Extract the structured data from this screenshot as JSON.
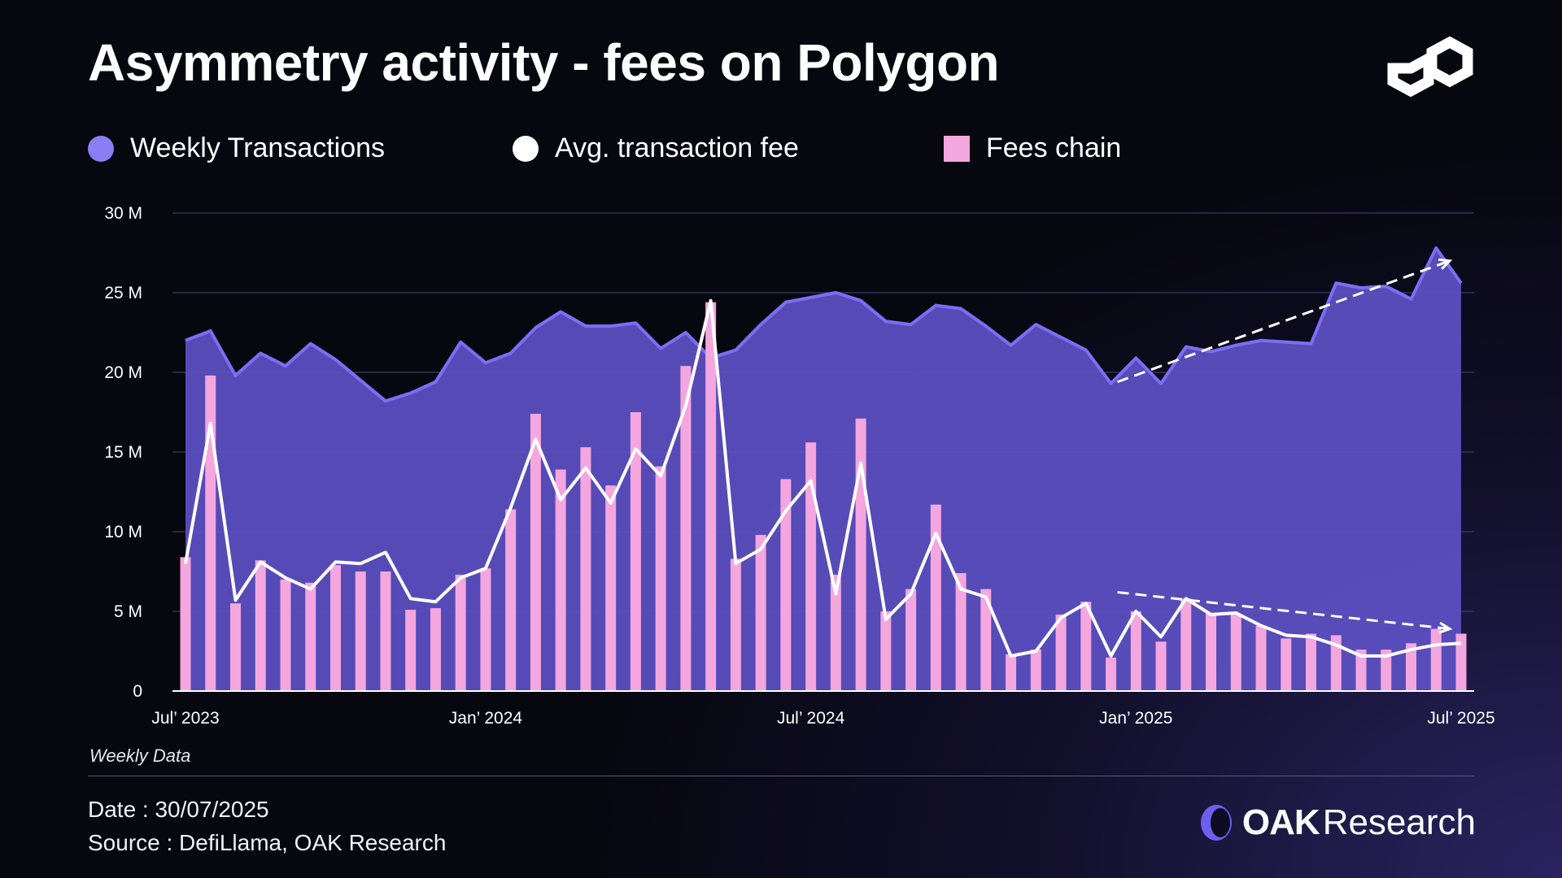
{
  "page": {
    "title": "Asymmetry activity - fees on Polygon",
    "note": "Weekly Data",
    "date": "Date : 30/07/2025",
    "source": "Source : DefiLlama, OAK Research",
    "brand_bold": "OAK",
    "brand_light": "Research"
  },
  "colors": {
    "area_fill": "#5b4fc0",
    "area_line": "#7b6ef5",
    "bar": "#f4a6de",
    "fee_line": "#ffffff",
    "grid": "#3b3960"
  },
  "chart_data": {
    "type": "bar+area+line",
    "legend": [
      {
        "label": "Weekly Transactions",
        "marker": "circle",
        "color": "#8a7ef5"
      },
      {
        "label": "Avg. transaction fee",
        "marker": "circle",
        "color": "#ffffff"
      },
      {
        "label": "Fees chain",
        "marker": "square",
        "color": "#f4a6de"
      }
    ],
    "y_axis": {
      "min": 0,
      "max": 30,
      "unit": "M",
      "ticks": [
        0,
        5,
        10,
        15,
        20,
        25,
        30
      ],
      "tick_labels": [
        "0",
        "5 M",
        "10 M",
        "15 M",
        "20 M",
        "25 M",
        "30 M"
      ]
    },
    "x_axis": {
      "labels": [
        "Jul’ 2023",
        "Jan’ 2024",
        "Jul’ 2024",
        "Jan’ 2025",
        "Jul’ 2025"
      ],
      "label_index": [
        0,
        12,
        25,
        38,
        51
      ]
    },
    "series": [
      {
        "name": "Weekly Transactions",
        "kind": "area",
        "values": [
          22.0,
          22.6,
          19.8,
          21.2,
          20.4,
          21.8,
          20.8,
          19.5,
          18.2,
          18.7,
          19.4,
          21.9,
          20.6,
          21.2,
          22.8,
          23.8,
          22.9,
          22.9,
          23.1,
          21.5,
          22.5,
          20.9,
          21.4,
          23.0,
          24.4,
          24.7,
          25.0,
          24.5,
          23.2,
          23.0,
          24.2,
          24.0,
          22.9,
          21.7,
          23.0,
          22.2,
          21.4,
          19.3,
          20.9,
          19.3,
          21.6,
          21.3,
          21.7,
          22.0,
          21.9,
          21.8,
          25.6,
          25.3,
          25.4,
          24.6,
          27.8,
          25.6
        ]
      },
      {
        "name": "Fees chain",
        "kind": "bar",
        "values": [
          8.4,
          19.8,
          5.5,
          8.2,
          7.0,
          6.8,
          7.9,
          7.5,
          7.5,
          5.1,
          5.2,
          7.3,
          7.7,
          11.4,
          17.4,
          13.9,
          15.3,
          12.9,
          17.5,
          14.1,
          20.4,
          24.4,
          8.3,
          9.8,
          13.3,
          15.6,
          7.3,
          17.1,
          5.0,
          6.4,
          11.7,
          7.4,
          6.4,
          2.3,
          2.6,
          4.8,
          5.6,
          2.1,
          5.0,
          3.1,
          5.8,
          4.9,
          4.8,
          4.1,
          3.3,
          3.6,
          3.5,
          2.6,
          2.6,
          3.0,
          3.9,
          3.6
        ]
      },
      {
        "name": "Avg. transaction fee",
        "kind": "line",
        "values": [
          8.0,
          16.8,
          5.7,
          8.1,
          7.1,
          6.4,
          8.1,
          8.0,
          8.7,
          5.8,
          5.6,
          7.1,
          7.7,
          11.5,
          15.8,
          12.0,
          14.0,
          11.8,
          15.2,
          13.5,
          17.9,
          24.5,
          8.0,
          8.9,
          11.3,
          13.2,
          6.1,
          14.3,
          4.5,
          6.1,
          9.9,
          6.4,
          5.9,
          2.2,
          2.5,
          4.6,
          5.5,
          2.2,
          5.0,
          3.4,
          5.8,
          4.8,
          4.9,
          4.1,
          3.5,
          3.4,
          2.9,
          2.2,
          2.2,
          2.6,
          2.9,
          3.0
        ]
      }
    ],
    "annotations": [
      {
        "type": "dashed-arrow",
        "series": "Weekly Transactions",
        "from": [
          37,
          19.4
        ],
        "to": [
          51,
          27.0
        ]
      },
      {
        "type": "dashed-arrow",
        "series": "Fees chain",
        "from": [
          37,
          6.2
        ],
        "to": [
          51,
          3.9
        ]
      }
    ]
  }
}
